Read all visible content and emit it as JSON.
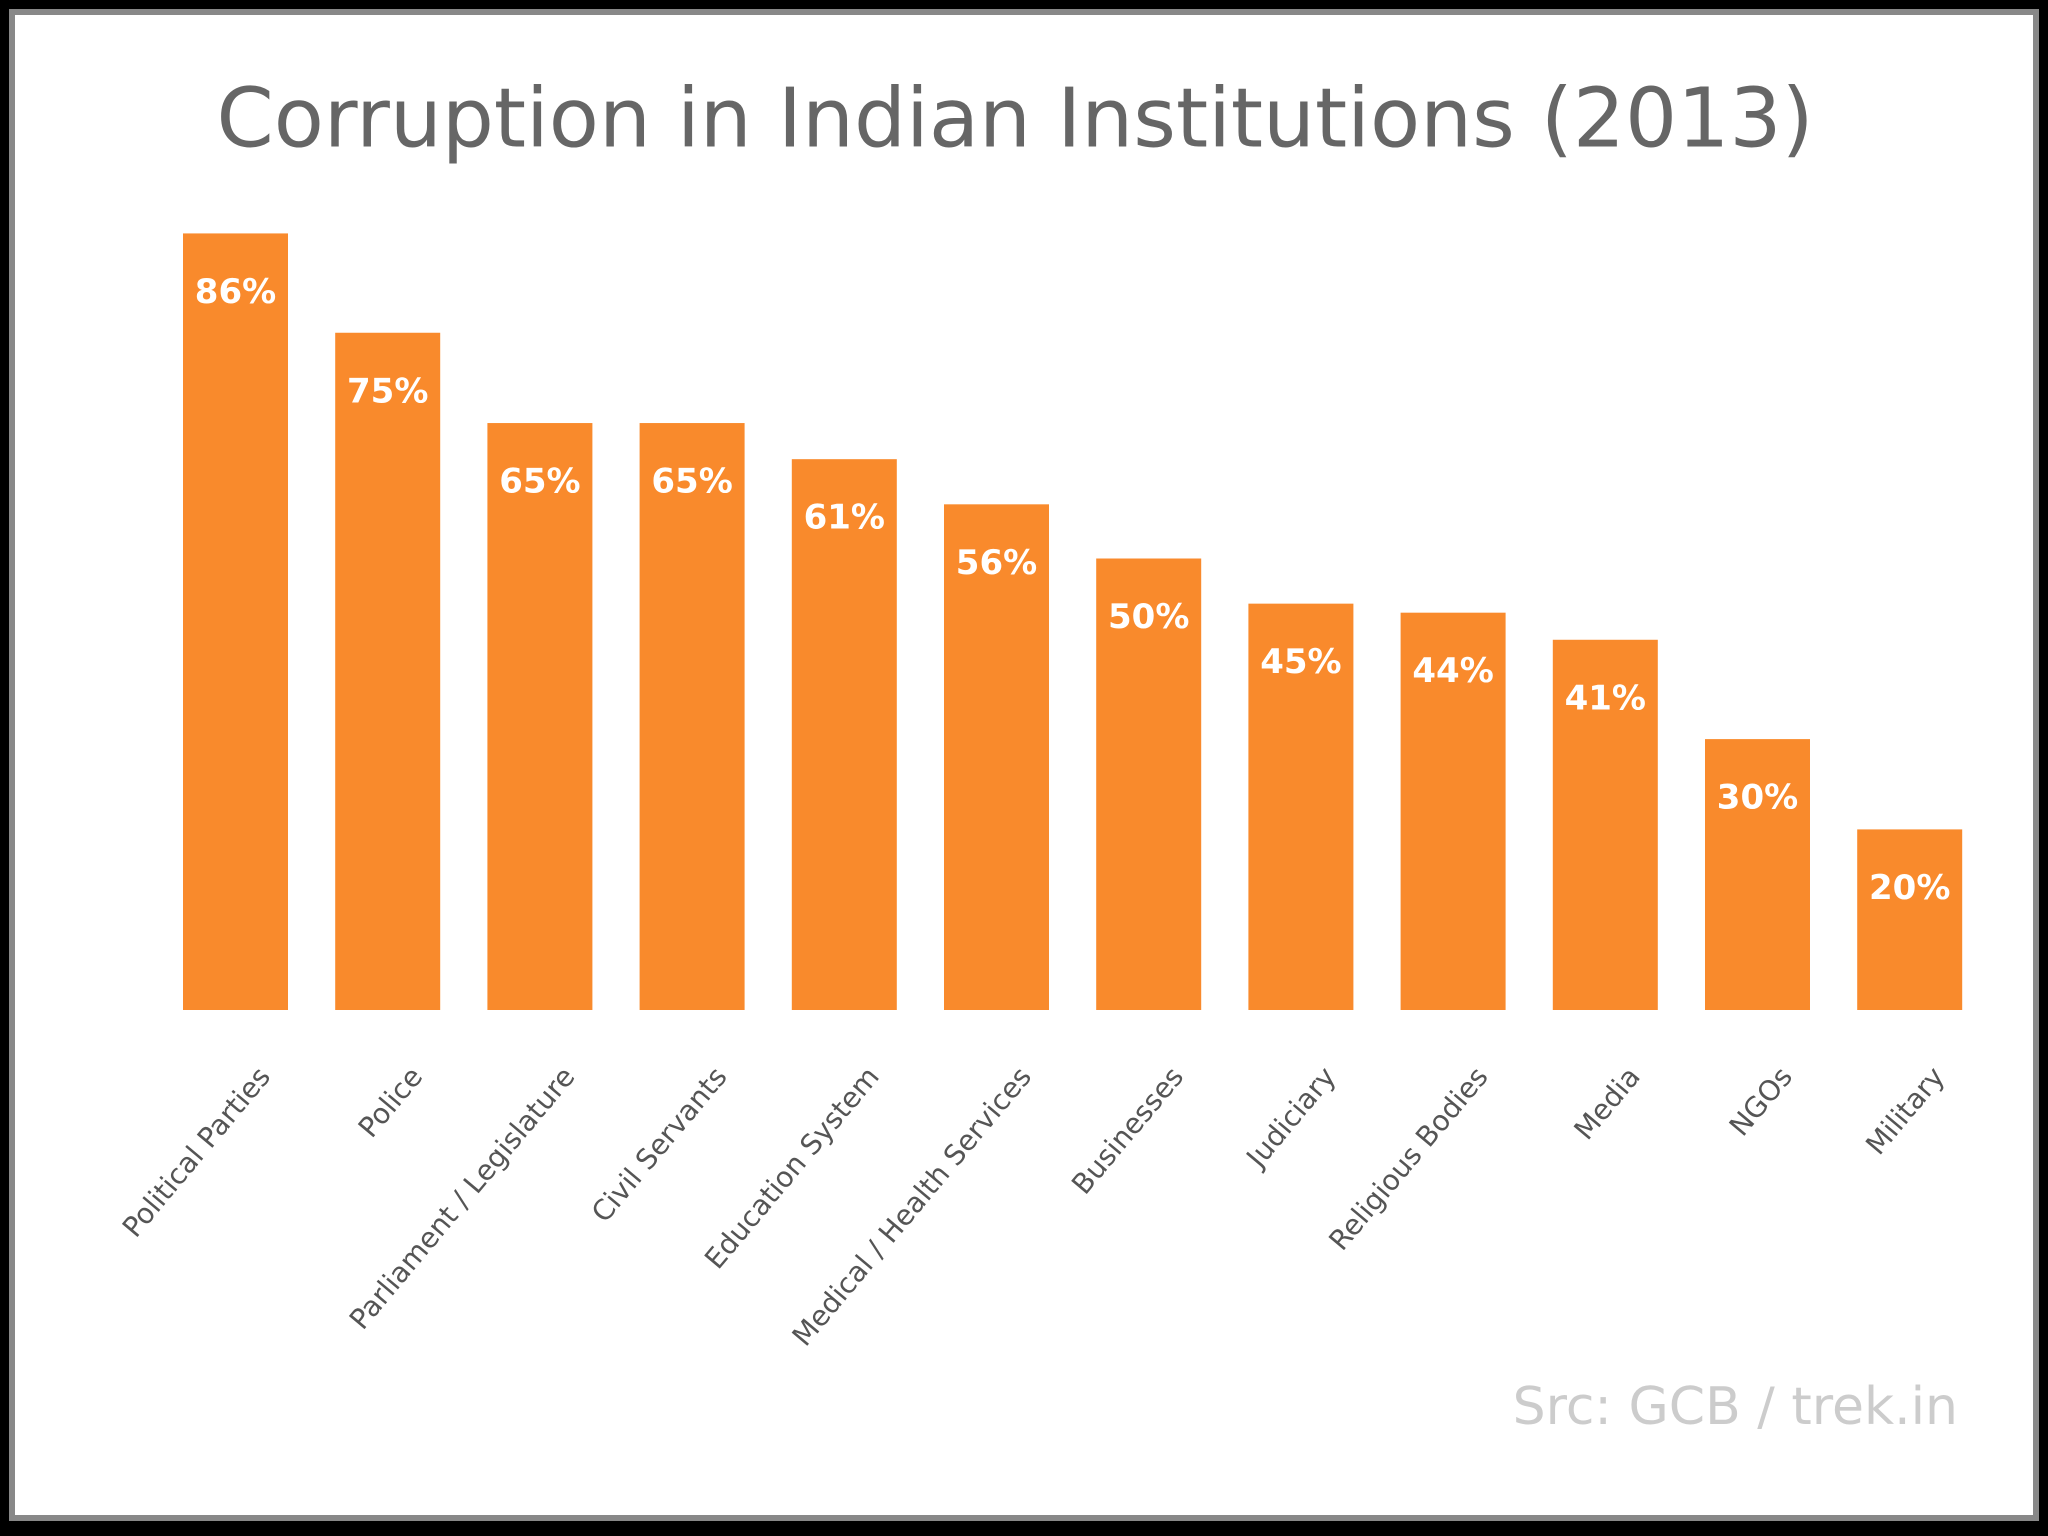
{
  "chart_data": {
    "type": "bar",
    "title": "Corruption in Indian Institutions (2013)",
    "categories": [
      "Political Parties",
      "Police",
      "Parliament / Legislature",
      "Civil Servants",
      "Education System",
      "Medical / Health Services",
      "Businesses",
      "Judiciary",
      "Religious Bodies",
      "Media",
      "NGOs",
      "Military"
    ],
    "values": [
      86,
      75,
      65,
      65,
      61,
      56,
      50,
      45,
      44,
      41,
      30,
      20
    ],
    "value_labels": [
      "86%",
      "75%",
      "65%",
      "65%",
      "61%",
      "56%",
      "50%",
      "45%",
      "44%",
      "41%",
      "30%",
      "20%"
    ],
    "color": "#f98a2c",
    "annotation": "Src: GCB / trek.in"
  }
}
